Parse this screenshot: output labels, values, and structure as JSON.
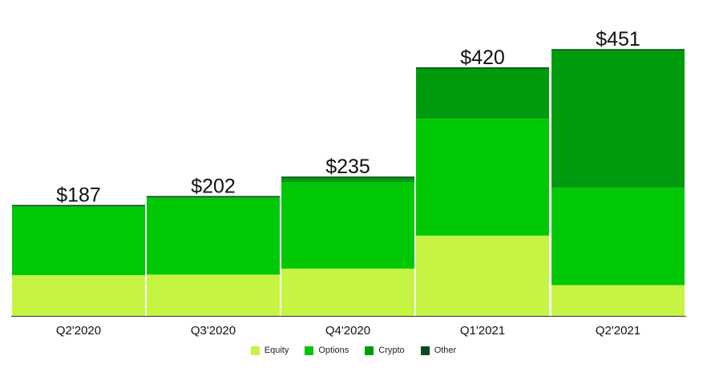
{
  "chart_data": {
    "type": "bar",
    "stacked": true,
    "categories": [
      "Q2'2020",
      "Q3'2020",
      "Q4'2020",
      "Q1'2021",
      "Q2'2021"
    ],
    "totals": [
      187,
      202,
      235,
      420,
      451
    ],
    "total_labels": [
      "$187",
      "$202",
      "$235",
      "$420",
      "$451"
    ],
    "series": [
      {
        "name": "Equity",
        "color": "#c6f442",
        "values": [
          69,
          70,
          80,
          136,
          52
        ]
      },
      {
        "name": "Options",
        "color": "#00c805",
        "values": [
          116,
          130,
          146,
          198,
          165
        ]
      },
      {
        "name": "Crypto",
        "color": "#009b0c",
        "values": [
          2,
          2,
          9,
          86,
          234
        ]
      },
      {
        "name": "Other",
        "color": "#0a4a1e",
        "values": [
          0,
          0,
          0,
          0,
          0
        ]
      }
    ],
    "ylim": [
      0,
      470
    ],
    "grid": false,
    "legend_position": "bottom"
  }
}
